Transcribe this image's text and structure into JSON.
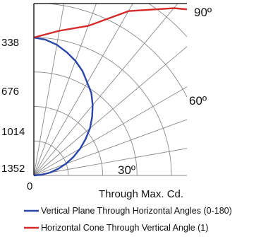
{
  "chart_data": {
    "type": "line",
    "subtype": "photometric-polar",
    "colors": {
      "vertical_plane": "#2a46a8",
      "horizontal_cone": "#d42a2a",
      "grid": "#8a8a8a"
    },
    "r_ticks": [
      0,
      338,
      676,
      1014,
      1352
    ],
    "r_max": 1352,
    "angle_labels": [
      "30º",
      "60º",
      "90º"
    ],
    "xlabel": "Through Max. Cd.",
    "series": [
      {
        "name": "Vertical Plane Through Horizontal Angles (0-180)",
        "color": "#2a46a8",
        "points": [
          {
            "angle": 0,
            "cd": 1352
          },
          {
            "angle": 5,
            "cd": 1335
          },
          {
            "angle": 10,
            "cd": 1300
          },
          {
            "angle": 15,
            "cd": 1250
          },
          {
            "angle": 20,
            "cd": 1195
          },
          {
            "angle": 25,
            "cd": 1130
          },
          {
            "angle": 30,
            "cd": 1050
          },
          {
            "angle": 35,
            "cd": 985
          },
          {
            "angle": 40,
            "cd": 900
          },
          {
            "angle": 45,
            "cd": 810
          },
          {
            "angle": 50,
            "cd": 720
          },
          {
            "angle": 55,
            "cd": 620
          },
          {
            "angle": 60,
            "cd": 525
          },
          {
            "angle": 65,
            "cd": 430
          },
          {
            "angle": 70,
            "cd": 335
          },
          {
            "angle": 75,
            "cd": 245
          },
          {
            "angle": 80,
            "cd": 160
          },
          {
            "angle": 85,
            "cd": 75
          },
          {
            "angle": 90,
            "cd": 0
          }
        ]
      },
      {
        "name": "Horizontal Cone Through Vertical Angle (1)",
        "color": "#d42a2a",
        "points": [
          {
            "angle": 0,
            "cd": 1352
          },
          {
            "angle": 10,
            "cd": 1440
          },
          {
            "angle": 20,
            "cd": 1560
          },
          {
            "angle": 30,
            "cd": 1860
          },
          {
            "angle": 40,
            "cd": 2140
          },
          {
            "angle": 50,
            "cd": 2480
          },
          {
            "angle": 60,
            "cd": 2560
          }
        ]
      }
    ]
  }
}
